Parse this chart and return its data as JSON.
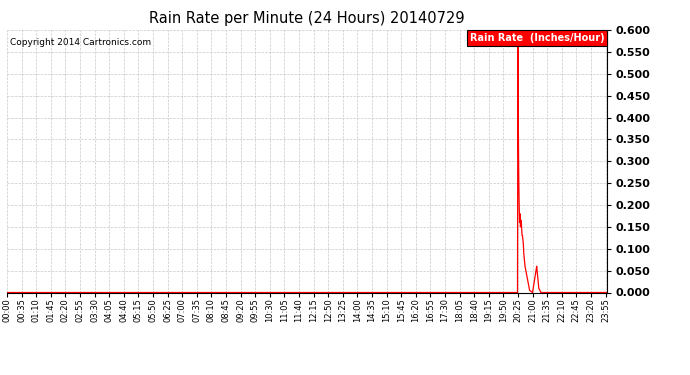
{
  "title": "Rain Rate per Minute (24 Hours) 20140729",
  "copyright_text": "Copyright 2014 Cartronics.com",
  "legend_label": "Rain Rate  (Inches/Hour)",
  "legend_bg": "#ff0000",
  "legend_fg": "#ffffff",
  "line_color": "#ff0000",
  "background_color": "#ffffff",
  "grid_color": "#bbbbbb",
  "ylim": [
    0.0,
    0.6
  ],
  "yticks": [
    0.0,
    0.05,
    0.1,
    0.15,
    0.2,
    0.25,
    0.3,
    0.35,
    0.4,
    0.45,
    0.5,
    0.55,
    0.6
  ],
  "total_minutes": 1440,
  "rain_data": [
    [
      0,
      0.0
    ],
    [
      1224,
      0.0
    ],
    [
      1225,
      0.6
    ],
    [
      1226,
      0.38
    ],
    [
      1227,
      0.26
    ],
    [
      1228,
      0.2
    ],
    [
      1229,
      0.16
    ],
    [
      1230,
      0.18
    ],
    [
      1231,
      0.15
    ],
    [
      1232,
      0.155
    ],
    [
      1233,
      0.165
    ],
    [
      1234,
      0.145
    ],
    [
      1235,
      0.13
    ],
    [
      1236,
      0.13
    ],
    [
      1237,
      0.12
    ],
    [
      1238,
      0.11
    ],
    [
      1239,
      0.09
    ],
    [
      1240,
      0.08
    ],
    [
      1241,
      0.07
    ],
    [
      1242,
      0.06
    ],
    [
      1243,
      0.055
    ],
    [
      1244,
      0.05
    ],
    [
      1245,
      0.045
    ],
    [
      1246,
      0.04
    ],
    [
      1247,
      0.035
    ],
    [
      1248,
      0.03
    ],
    [
      1249,
      0.025
    ],
    [
      1250,
      0.02
    ],
    [
      1251,
      0.015
    ],
    [
      1252,
      0.01
    ],
    [
      1253,
      0.005
    ],
    [
      1260,
      0.0
    ],
    [
      1270,
      0.06
    ],
    [
      1271,
      0.05
    ],
    [
      1272,
      0.04
    ],
    [
      1273,
      0.03
    ],
    [
      1274,
      0.02
    ],
    [
      1275,
      0.01
    ],
    [
      1280,
      0.0
    ],
    [
      1439,
      0.0
    ]
  ],
  "xtick_interval": 35,
  "xtick_labels": [
    "00:00",
    "00:35",
    "01:10",
    "01:45",
    "02:20",
    "02:55",
    "03:30",
    "04:05",
    "04:40",
    "05:15",
    "05:50",
    "06:25",
    "07:00",
    "07:35",
    "08:10",
    "08:45",
    "09:20",
    "09:55",
    "10:30",
    "11:05",
    "11:40",
    "12:15",
    "12:50",
    "13:25",
    "14:00",
    "14:35",
    "15:10",
    "15:45",
    "16:20",
    "16:55",
    "17:30",
    "18:05",
    "18:40",
    "19:15",
    "19:50",
    "20:25",
    "21:00",
    "21:35",
    "22:10",
    "22:45",
    "23:20",
    "23:55"
  ]
}
